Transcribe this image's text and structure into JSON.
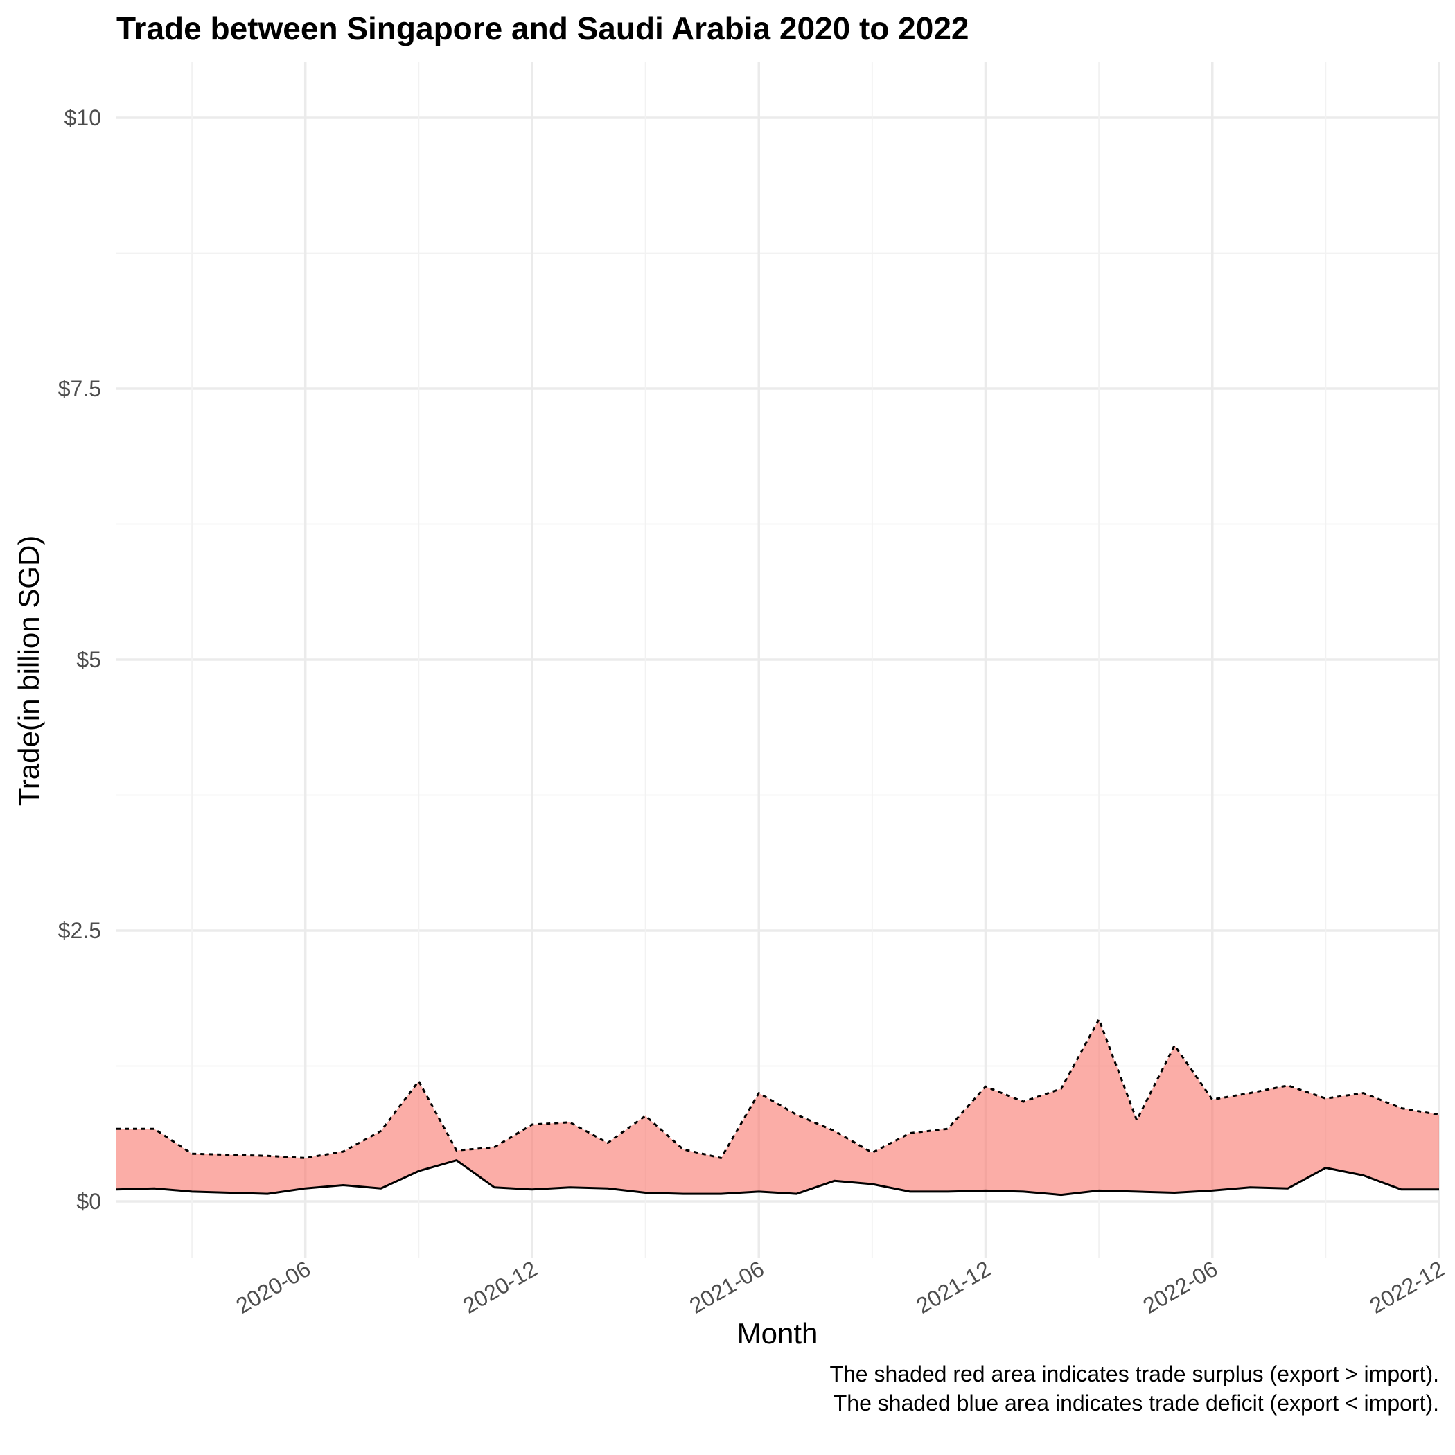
{
  "chart_data": {
    "type": "area",
    "title": "Trade between Singapore and Saudi Arabia  2020 to 2022",
    "xlabel": "Month",
    "ylabel": "Trade(in billion SGD)",
    "ylim": [
      0,
      10
    ],
    "y_ticks": [
      {
        "value": 0,
        "label": "$0"
      },
      {
        "value": 2.5,
        "label": "$2.5"
      },
      {
        "value": 5,
        "label": "$5"
      },
      {
        "value": 7.5,
        "label": "$7.5"
      },
      {
        "value": 10,
        "label": "$10"
      }
    ],
    "x_ticks": [
      "2020-06",
      "2020-12",
      "2021-06",
      "2021-12",
      "2022-06",
      "2022-12"
    ],
    "x": [
      "2020-01",
      "2020-02",
      "2020-03",
      "2020-04",
      "2020-05",
      "2020-06",
      "2020-07",
      "2020-08",
      "2020-09",
      "2020-10",
      "2020-11",
      "2020-12",
      "2021-01",
      "2021-02",
      "2021-03",
      "2021-04",
      "2021-05",
      "2021-06",
      "2021-07",
      "2021-08",
      "2021-09",
      "2021-10",
      "2021-11",
      "2021-12",
      "2022-01",
      "2022-02",
      "2022-03",
      "2022-04",
      "2022-05",
      "2022-06",
      "2022-07",
      "2022-08",
      "2022-09",
      "2022-10",
      "2022-11",
      "2022-12"
    ],
    "series": [
      {
        "line": "dotted",
        "values": [
          0.67,
          0.67,
          0.44,
          0.43,
          0.42,
          0.4,
          0.46,
          0.65,
          1.11,
          0.47,
          0.5,
          0.71,
          0.73,
          0.54,
          0.79,
          0.48,
          0.4,
          1.0,
          0.8,
          0.65,
          0.45,
          0.63,
          0.67,
          1.06,
          0.92,
          1.04,
          1.68,
          0.75,
          1.44,
          0.94,
          1.0,
          1.07,
          0.95,
          1.0,
          0.86,
          0.8
        ]
      },
      {
        "line": "solid",
        "values": [
          0.11,
          0.12,
          0.09,
          0.08,
          0.07,
          0.12,
          0.15,
          0.12,
          0.28,
          0.38,
          0.13,
          0.11,
          0.13,
          0.12,
          0.08,
          0.07,
          0.07,
          0.09,
          0.07,
          0.19,
          0.16,
          0.09,
          0.09,
          0.1,
          0.09,
          0.06,
          0.1,
          0.09,
          0.08,
          0.1,
          0.13,
          0.12,
          0.31,
          0.24,
          0.11,
          0.11
        ]
      }
    ],
    "fill_colors": {
      "surplus": "#f8766d",
      "deficit": "#00bfc4"
    },
    "grid": true,
    "caption": [
      "The shaded red area indicates trade surplus (export > import).",
      "The shaded blue area indicates trade deficit (export < import)."
    ]
  }
}
